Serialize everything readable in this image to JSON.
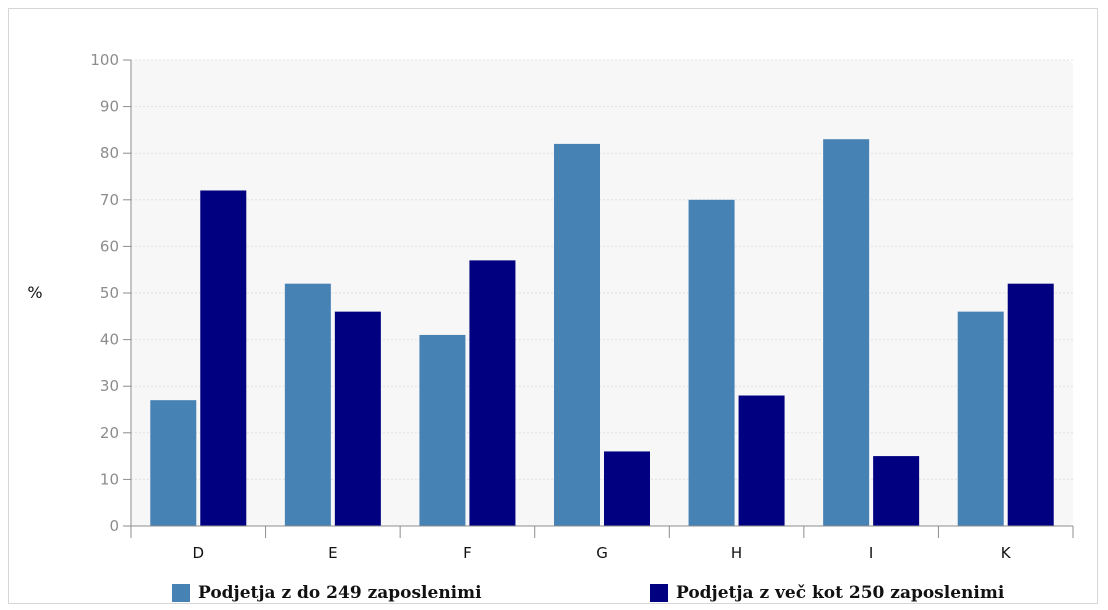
{
  "chart_data": {
    "type": "bar",
    "title": "",
    "xlabel": "",
    "ylabel": "%",
    "ylim": [
      0,
      100
    ],
    "yticks": [
      0,
      10,
      20,
      30,
      40,
      50,
      60,
      70,
      80,
      90,
      100
    ],
    "categories": [
      "D",
      "E",
      "F",
      "G",
      "H",
      "I",
      "K"
    ],
    "series": [
      {
        "name": "Podjetja z do 249 zaposlenimi",
        "color": "#4682b4",
        "values": [
          27,
          52,
          41,
          82,
          70,
          83,
          46
        ]
      },
      {
        "name": "Podjetja z več kot 250 zaposlenimi",
        "color": "#000080",
        "values": [
          72,
          46,
          57,
          16,
          28,
          15,
          52
        ]
      }
    ],
    "grid": true,
    "legend_position": "bottom"
  }
}
